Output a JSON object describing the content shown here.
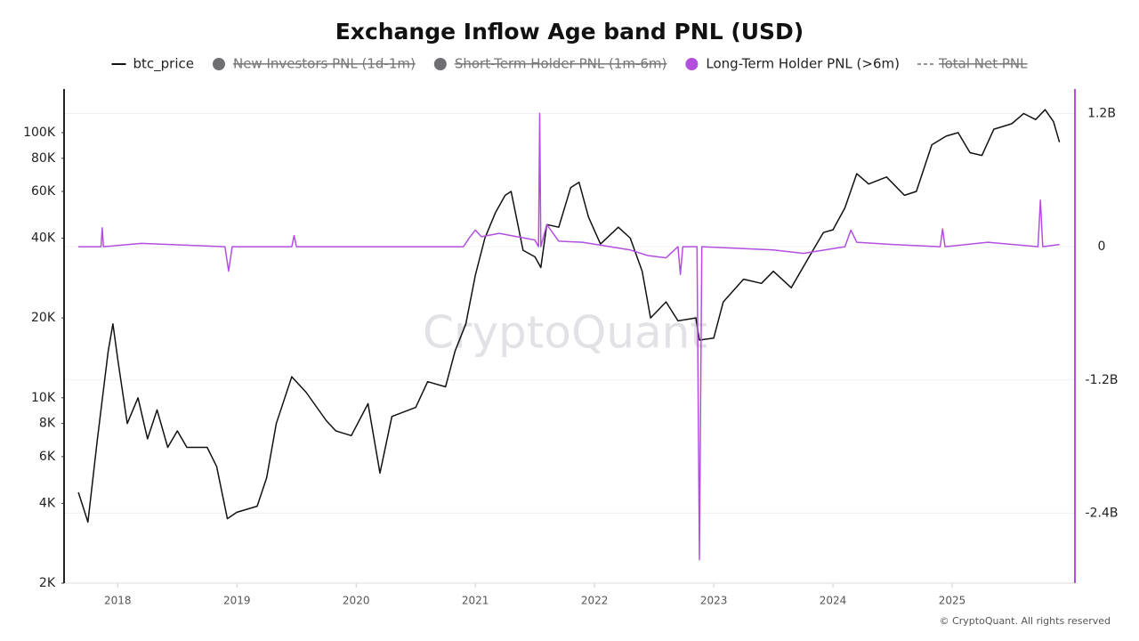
{
  "chart_data": {
    "type": "line",
    "title": "Exchange Inflow Age band PNL (USD)",
    "watermark": "CryptoQuant",
    "footer": "© CryptoQuant. All rights reserved",
    "xlim": [
      2017.55,
      2026.03
    ],
    "xticks": [
      2018,
      2019,
      2020,
      2021,
      2022,
      2023,
      2024,
      2025
    ],
    "ylog": true,
    "ylim": [
      2000,
      146000
    ],
    "yticks": [
      {
        "value": 2000,
        "label": "2K"
      },
      {
        "value": 4000,
        "label": "4K"
      },
      {
        "value": 6000,
        "label": "6K"
      },
      {
        "value": 8000,
        "label": "8K"
      },
      {
        "value": 10000,
        "label": "10K"
      },
      {
        "value": 20000,
        "label": "20K"
      },
      {
        "value": 40000,
        "label": "40K"
      },
      {
        "value": 60000,
        "label": "60K"
      },
      {
        "value": 80000,
        "label": "80K"
      },
      {
        "value": 100000,
        "label": "100K"
      }
    ],
    "y2lim": [
      -3030000000,
      1420000000
    ],
    "y2ticks": [
      {
        "value": -2400000000,
        "label": "-2.4B"
      },
      {
        "value": -1200000000,
        "label": "-1.2B"
      },
      0,
      {
        "value": 1200000000,
        "label": "1.2B"
      }
    ],
    "grid": true,
    "series": [
      {
        "name": "btc_price",
        "color": "#111111",
        "visible": true,
        "style": "line",
        "x": [
          2017.67,
          2017.75,
          2017.83,
          2017.92,
          2017.96,
          2018.0,
          2018.08,
          2018.17,
          2018.25,
          2018.33,
          2018.42,
          2018.5,
          2018.58,
          2018.67,
          2018.75,
          2018.83,
          2018.92,
          2019.0,
          2019.17,
          2019.25,
          2019.33,
          2019.46,
          2019.58,
          2019.75,
          2019.83,
          2019.96,
          2020.1,
          2020.2,
          2020.3,
          2020.5,
          2020.6,
          2020.75,
          2020.83,
          2020.92,
          2021.0,
          2021.08,
          2021.17,
          2021.25,
          2021.3,
          2021.4,
          2021.5,
          2021.55,
          2021.6,
          2021.7,
          2021.8,
          2021.87,
          2021.95,
          2022.05,
          2022.2,
          2022.3,
          2022.4,
          2022.47,
          2022.6,
          2022.7,
          2022.85,
          2022.88,
          2023.0,
          2023.08,
          2023.25,
          2023.4,
          2023.5,
          2023.65,
          2023.8,
          2023.92,
          2024.0,
          2024.1,
          2024.2,
          2024.3,
          2024.45,
          2024.6,
          2024.7,
          2024.83,
          2024.95,
          2025.05,
          2025.15,
          2025.25,
          2025.35,
          2025.5,
          2025.6,
          2025.7,
          2025.78,
          2025.85,
          2025.9
        ],
        "values": [
          4400,
          3400,
          7000,
          15000,
          19000,
          14000,
          8000,
          10000,
          7000,
          9000,
          6500,
          7500,
          6500,
          6500,
          6500,
          5500,
          3500,
          3700,
          3900,
          5000,
          8000,
          12000,
          10500,
          8200,
          7500,
          7200,
          9500,
          5200,
          8500,
          9200,
          11500,
          11000,
          15000,
          19000,
          29000,
          40000,
          50000,
          58000,
          60000,
          36000,
          34000,
          31000,
          45000,
          44000,
          62000,
          65000,
          48000,
          38000,
          44000,
          40000,
          30000,
          20000,
          23000,
          19500,
          20000,
          16500,
          16800,
          23000,
          28000,
          27000,
          30000,
          26000,
          34000,
          42000,
          43000,
          52000,
          70000,
          64000,
          68000,
          58000,
          60000,
          90000,
          97000,
          100000,
          84000,
          82000,
          103000,
          108000,
          118000,
          112000,
          122000,
          110000,
          92000
        ]
      },
      {
        "name": "New Investors PNL (1d-1m)",
        "color": "#6e6e73",
        "visible": false,
        "style": "dot"
      },
      {
        "name": "Short-Term Holder PNL (1m-6m)",
        "color": "#6e6e73",
        "visible": false,
        "style": "dot"
      },
      {
        "name": "Long-Term Holder PNL (>6m)",
        "color": "#b34fe0",
        "visible": true,
        "style": "dot",
        "axis": "y2",
        "x": [
          2017.67,
          2017.86,
          2017.87,
          2017.88,
          2018.2,
          2018.9,
          2018.93,
          2018.96,
          2019.46,
          2019.48,
          2019.5,
          2020.9,
          2020.95,
          2021.0,
          2021.05,
          2021.2,
          2021.3,
          2021.5,
          2021.53,
          2021.54,
          2021.55,
          2021.6,
          2021.7,
          2021.9,
          2022.3,
          2022.45,
          2022.6,
          2022.7,
          2022.72,
          2022.74,
          2022.86,
          2022.88,
          2022.9,
          2023.5,
          2023.75,
          2024.1,
          2024.15,
          2024.2,
          2024.5,
          2024.9,
          2024.92,
          2024.94,
          2025.3,
          2025.72,
          2025.74,
          2025.76,
          2025.9
        ],
        "values": [
          0,
          0,
          170000000,
          0,
          30000000,
          0,
          -220000000,
          0,
          0,
          100000000,
          0,
          0,
          80000000,
          150000000,
          90000000,
          120000000,
          100000000,
          60000000,
          0,
          1200000000,
          0,
          200000000,
          50000000,
          40000000,
          -30000000,
          -80000000,
          -100000000,
          0,
          -250000000,
          0,
          0,
          -2820000000,
          0,
          -30000000,
          -60000000,
          0,
          150000000,
          40000000,
          20000000,
          0,
          160000000,
          0,
          40000000,
          0,
          420000000,
          0,
          20000000
        ]
      },
      {
        "name": "Total Net PNL",
        "color": "#6e6e73",
        "visible": false,
        "style": "dash"
      }
    ]
  }
}
